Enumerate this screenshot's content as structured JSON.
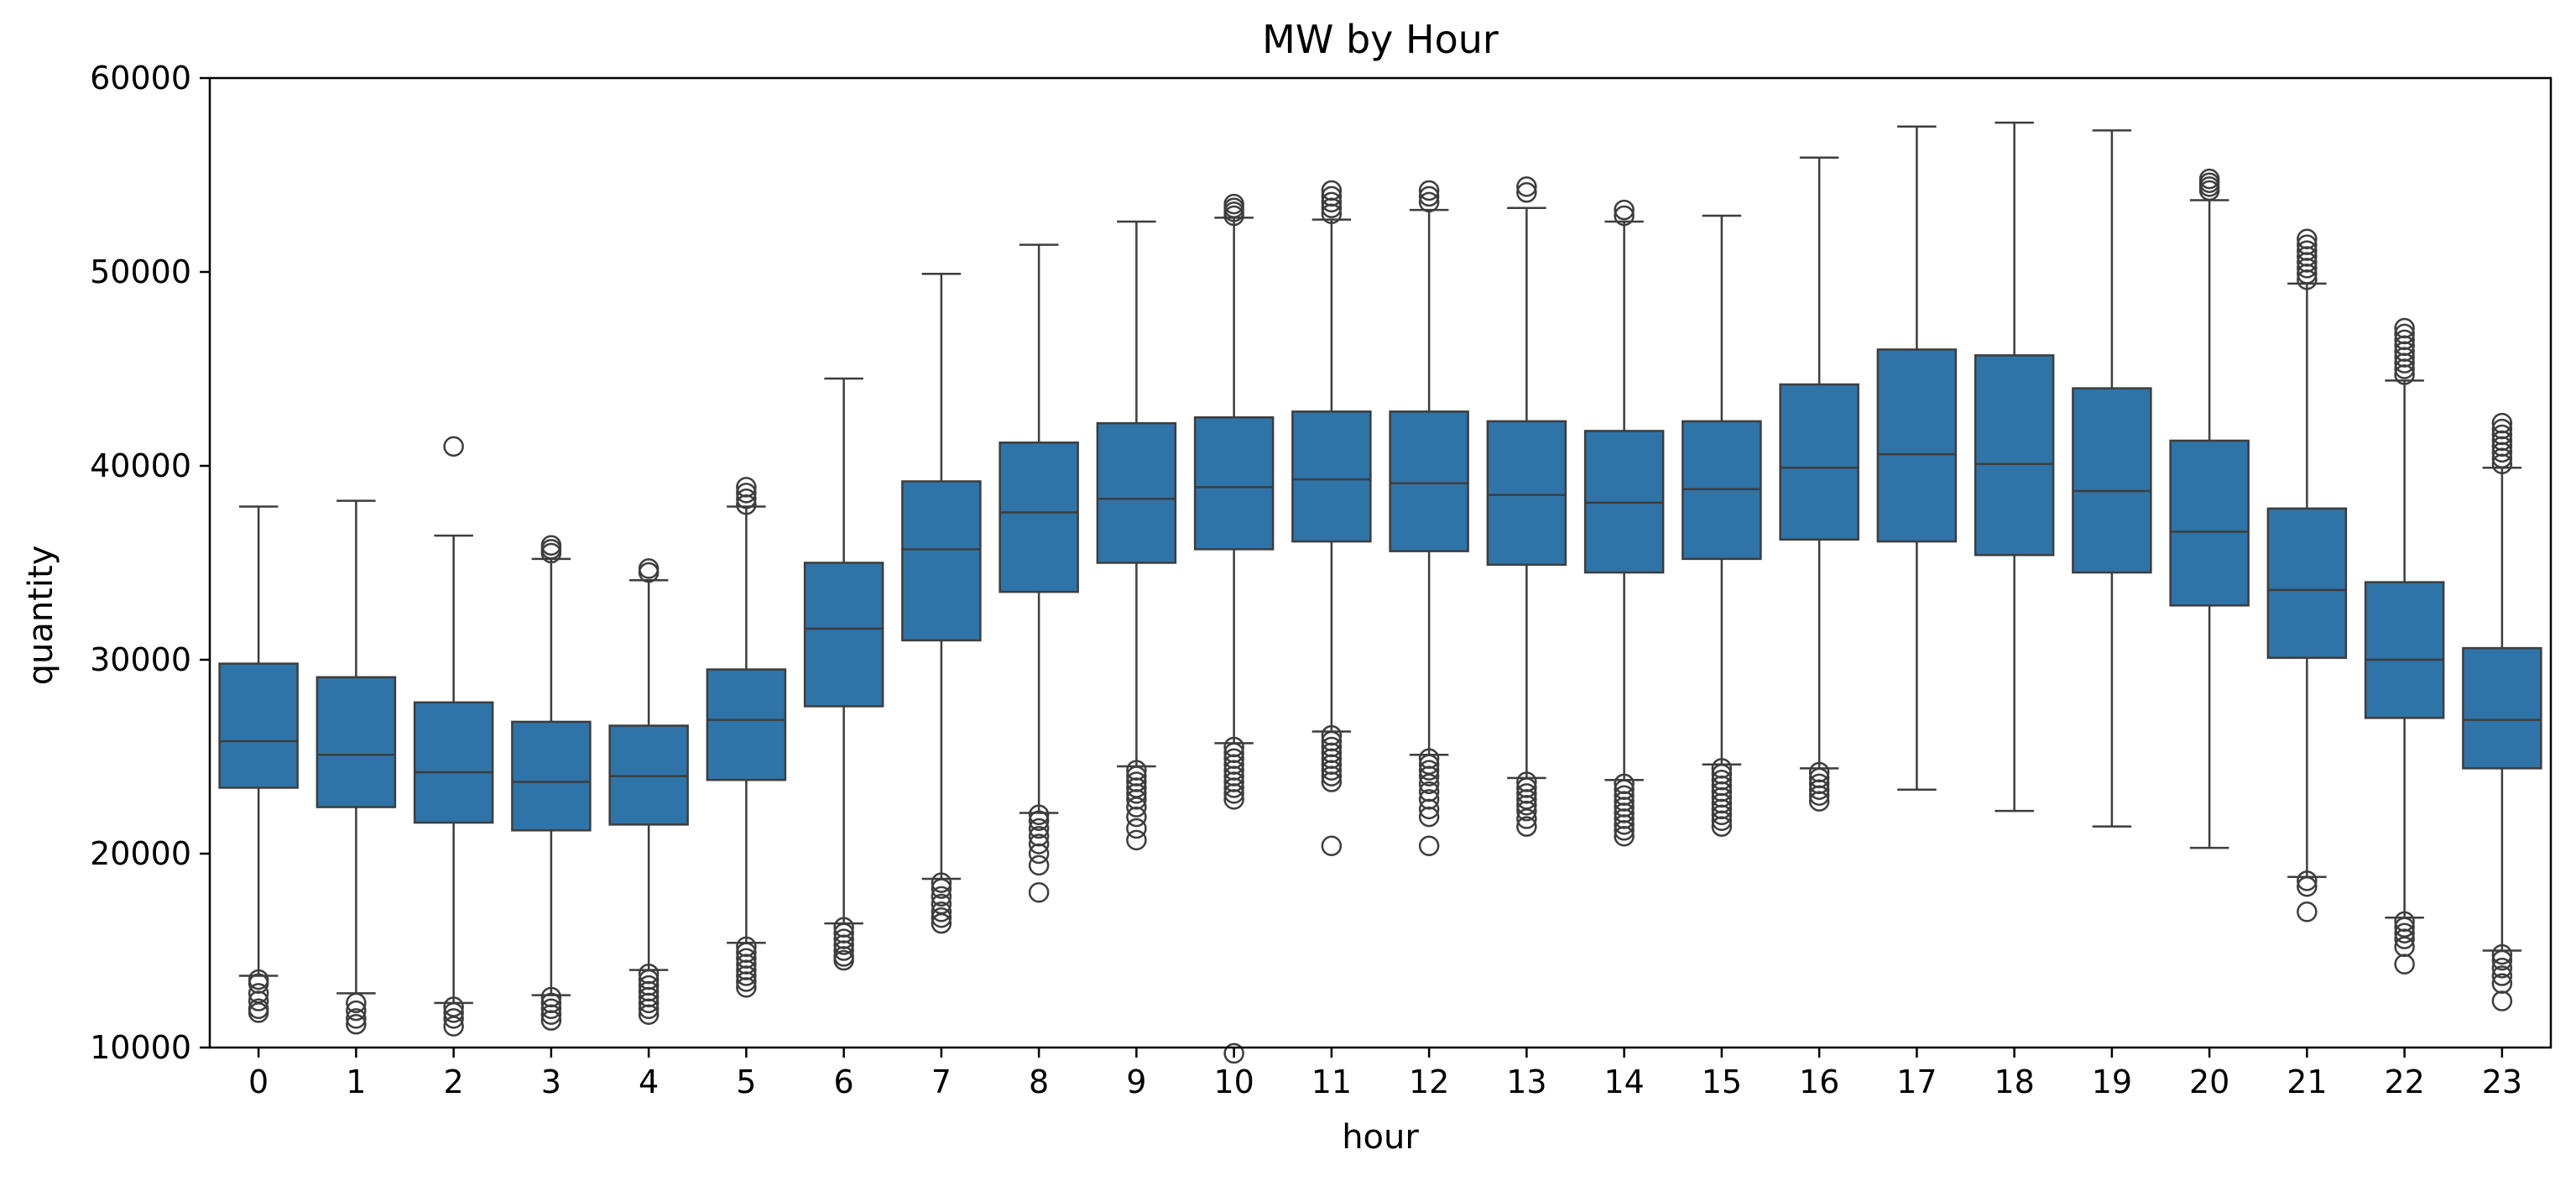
{
  "chart_data": {
    "type": "boxplot",
    "title": "MW by Hour",
    "xlabel": "hour",
    "ylabel": "quantity",
    "ylim": [
      10000,
      60000
    ],
    "yticks": [
      10000,
      20000,
      30000,
      40000,
      50000,
      60000
    ],
    "grid": false,
    "colors": {
      "box": "#2f74a8",
      "line": "#3d3d3d"
    },
    "categories": [
      "0",
      "1",
      "2",
      "3",
      "4",
      "5",
      "6",
      "7",
      "8",
      "9",
      "10",
      "11",
      "12",
      "13",
      "14",
      "15",
      "16",
      "17",
      "18",
      "19",
      "20",
      "21",
      "22",
      "23"
    ],
    "boxes": [
      {
        "q1": 23400,
        "median": 25800,
        "q3": 29800,
        "whislo": 13700,
        "whishi": 37900,
        "fliers": [
          13500,
          13300,
          12800,
          12400,
          12000,
          11800
        ]
      },
      {
        "q1": 22400,
        "median": 25100,
        "q3": 29100,
        "whislo": 12800,
        "whishi": 38200,
        "fliers": [
          12300,
          11900,
          11500,
          11200
        ]
      },
      {
        "q1": 21600,
        "median": 24200,
        "q3": 27800,
        "whislo": 12300,
        "whishi": 36400,
        "fliers": [
          41000,
          12100,
          11800,
          11500,
          11100
        ]
      },
      {
        "q1": 21200,
        "median": 23700,
        "q3": 26800,
        "whislo": 12700,
        "whishi": 35200,
        "fliers": [
          35900,
          35700,
          35500,
          12600,
          12300,
          12000,
          11700,
          11400
        ]
      },
      {
        "q1": 21500,
        "median": 24000,
        "q3": 26600,
        "whislo": 14000,
        "whishi": 34100,
        "fliers": [
          34700,
          34500,
          13800,
          13500,
          13200,
          12900,
          12600,
          12300,
          12000,
          11700
        ]
      },
      {
        "q1": 23800,
        "median": 26900,
        "q3": 29500,
        "whislo": 15400,
        "whishi": 37900,
        "fliers": [
          38900,
          38600,
          38300,
          38000,
          15200,
          14900,
          14600,
          14300,
          14000,
          13700,
          13400,
          13100
        ]
      },
      {
        "q1": 27600,
        "median": 31600,
        "q3": 35000,
        "whislo": 16400,
        "whishi": 44500,
        "fliers": [
          16200,
          15900,
          15600,
          15300,
          15000,
          14700,
          14500
        ]
      },
      {
        "q1": 31000,
        "median": 35700,
        "q3": 39200,
        "whislo": 18700,
        "whishi": 49900,
        "fliers": [
          18500,
          18200,
          17800,
          17400,
          17000,
          16700,
          16400
        ]
      },
      {
        "q1": 33500,
        "median": 37600,
        "q3": 41200,
        "whislo": 22100,
        "whishi": 51400,
        "fliers": [
          22000,
          21700,
          21300,
          20900,
          20500,
          20000,
          19400,
          18000
        ]
      },
      {
        "q1": 35000,
        "median": 38300,
        "q3": 42200,
        "whislo": 24500,
        "whishi": 52600,
        "fliers": [
          24300,
          24000,
          23700,
          23400,
          23100,
          22800,
          22400,
          21900,
          21300,
          20700
        ]
      },
      {
        "q1": 35700,
        "median": 38900,
        "q3": 42500,
        "whislo": 25700,
        "whishi": 52800,
        "fliers": [
          53500,
          53300,
          53100,
          52900,
          25500,
          25200,
          24900,
          24600,
          24300,
          24000,
          23700,
          23400,
          23100,
          22800,
          9700
        ]
      },
      {
        "q1": 36100,
        "median": 39300,
        "q3": 42800,
        "whislo": 26300,
        "whishi": 52700,
        "fliers": [
          54200,
          53900,
          53600,
          53300,
          53000,
          26100,
          25800,
          25500,
          25200,
          24900,
          24600,
          24300,
          24000,
          23700,
          20400
        ]
      },
      {
        "q1": 35600,
        "median": 39100,
        "q3": 42800,
        "whislo": 25100,
        "whishi": 53200,
        "fliers": [
          54200,
          53900,
          53600,
          24900,
          24600,
          24300,
          24000,
          23600,
          23200,
          22800,
          22300,
          21900,
          20400
        ]
      },
      {
        "q1": 34900,
        "median": 38500,
        "q3": 42300,
        "whislo": 23900,
        "whishi": 53300,
        "fliers": [
          54400,
          54100,
          23700,
          23400,
          23100,
          22800,
          22500,
          22200,
          21800,
          21400
        ]
      },
      {
        "q1": 34500,
        "median": 38100,
        "q3": 41800,
        "whislo": 23800,
        "whishi": 52600,
        "fliers": [
          53200,
          52900,
          23600,
          23300,
          23000,
          22700,
          22400,
          22100,
          21800,
          21500,
          21200,
          20900
        ]
      },
      {
        "q1": 35200,
        "median": 38800,
        "q3": 42300,
        "whislo": 24600,
        "whishi": 52900,
        "fliers": [
          24400,
          24100,
          23800,
          23500,
          23200,
          22900,
          22600,
          22300,
          22000,
          21700,
          21400
        ]
      },
      {
        "q1": 36200,
        "median": 39900,
        "q3": 44200,
        "whislo": 24400,
        "whishi": 55900,
        "fliers": [
          24200,
          23900,
          23600,
          23300,
          23000,
          22700
        ]
      },
      {
        "q1": 36100,
        "median": 40600,
        "q3": 46000,
        "whislo": 23300,
        "whishi": 57500,
        "fliers": []
      },
      {
        "q1": 35400,
        "median": 40100,
        "q3": 45700,
        "whislo": 22200,
        "whishi": 57700,
        "fliers": []
      },
      {
        "q1": 34500,
        "median": 38700,
        "q3": 44000,
        "whislo": 21400,
        "whishi": 57300,
        "fliers": []
      },
      {
        "q1": 32800,
        "median": 36600,
        "q3": 41300,
        "whislo": 20300,
        "whishi": 53700,
        "fliers": [
          54800,
          54600,
          54400,
          54200
        ]
      },
      {
        "q1": 30100,
        "median": 33600,
        "q3": 37800,
        "whislo": 18800,
        "whishi": 49400,
        "fliers": [
          51700,
          51400,
          51100,
          50800,
          50500,
          50200,
          49900,
          49600,
          18600,
          18300,
          17000
        ]
      },
      {
        "q1": 27000,
        "median": 30000,
        "q3": 34000,
        "whislo": 16700,
        "whishi": 44400,
        "fliers": [
          47100,
          46800,
          46500,
          46200,
          45900,
          45600,
          45300,
          45000,
          44700,
          16500,
          16200,
          15900,
          15600,
          15200,
          14300
        ]
      },
      {
        "q1": 24400,
        "median": 26900,
        "q3": 30600,
        "whislo": 15000,
        "whishi": 39900,
        "fliers": [
          42200,
          41900,
          41600,
          41300,
          41000,
          40700,
          40400,
          40100,
          14800,
          14500,
          14100,
          13700,
          13300,
          12400
        ]
      }
    ]
  }
}
